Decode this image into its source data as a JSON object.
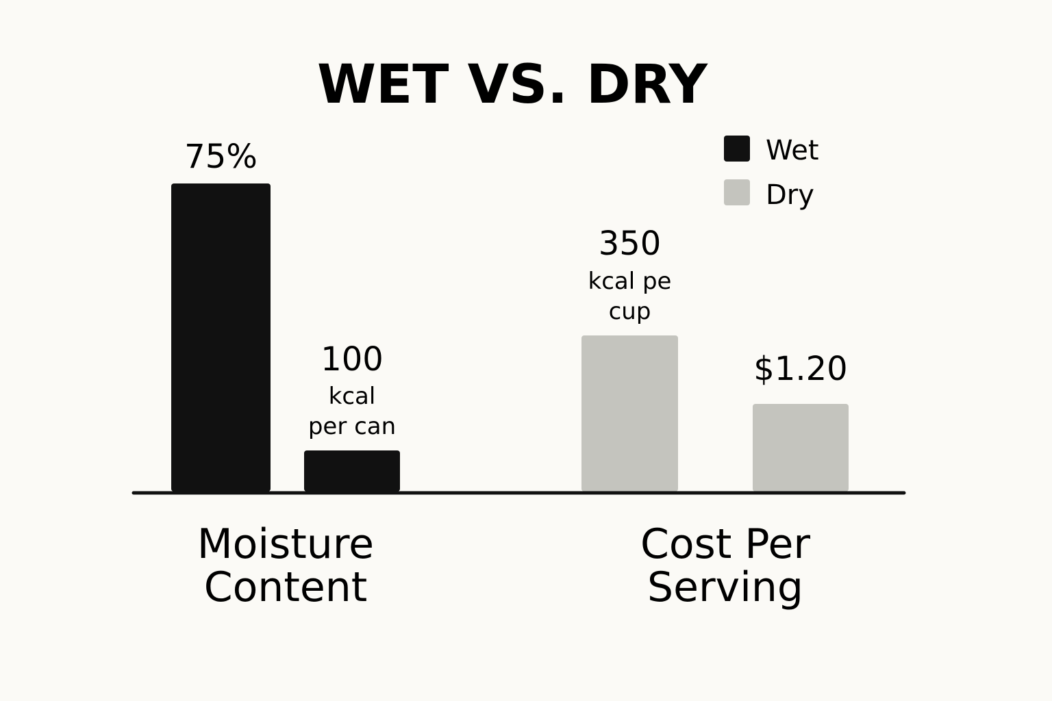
{
  "chart_data": {
    "type": "bar",
    "title": "WET VS. DRY",
    "categories": [
      [
        "Moisture",
        "Content"
      ],
      [
        "Cost Per",
        "Serving"
      ]
    ],
    "legend_position": "top-right",
    "series": [
      {
        "name": "Wet",
        "color": "#111111",
        "bars": [
          {
            "category_index": 0,
            "value": 75,
            "label": [
              "75%"
            ]
          },
          {
            "category_index": 0,
            "value": 100,
            "label": [
              "100",
              "kcal",
              "per can"
            ]
          }
        ]
      },
      {
        "name": "Dry",
        "color": "#c4c4be",
        "bars": [
          {
            "category_index": 1,
            "value": 350,
            "label": [
              "350",
              "kcal pe",
              "cup"
            ]
          },
          {
            "category_index": 1,
            "value": 1.2,
            "label": [
              "$1.20"
            ]
          }
        ]
      }
    ],
    "xlabel": "",
    "ylabel": "",
    "grid": false
  }
}
